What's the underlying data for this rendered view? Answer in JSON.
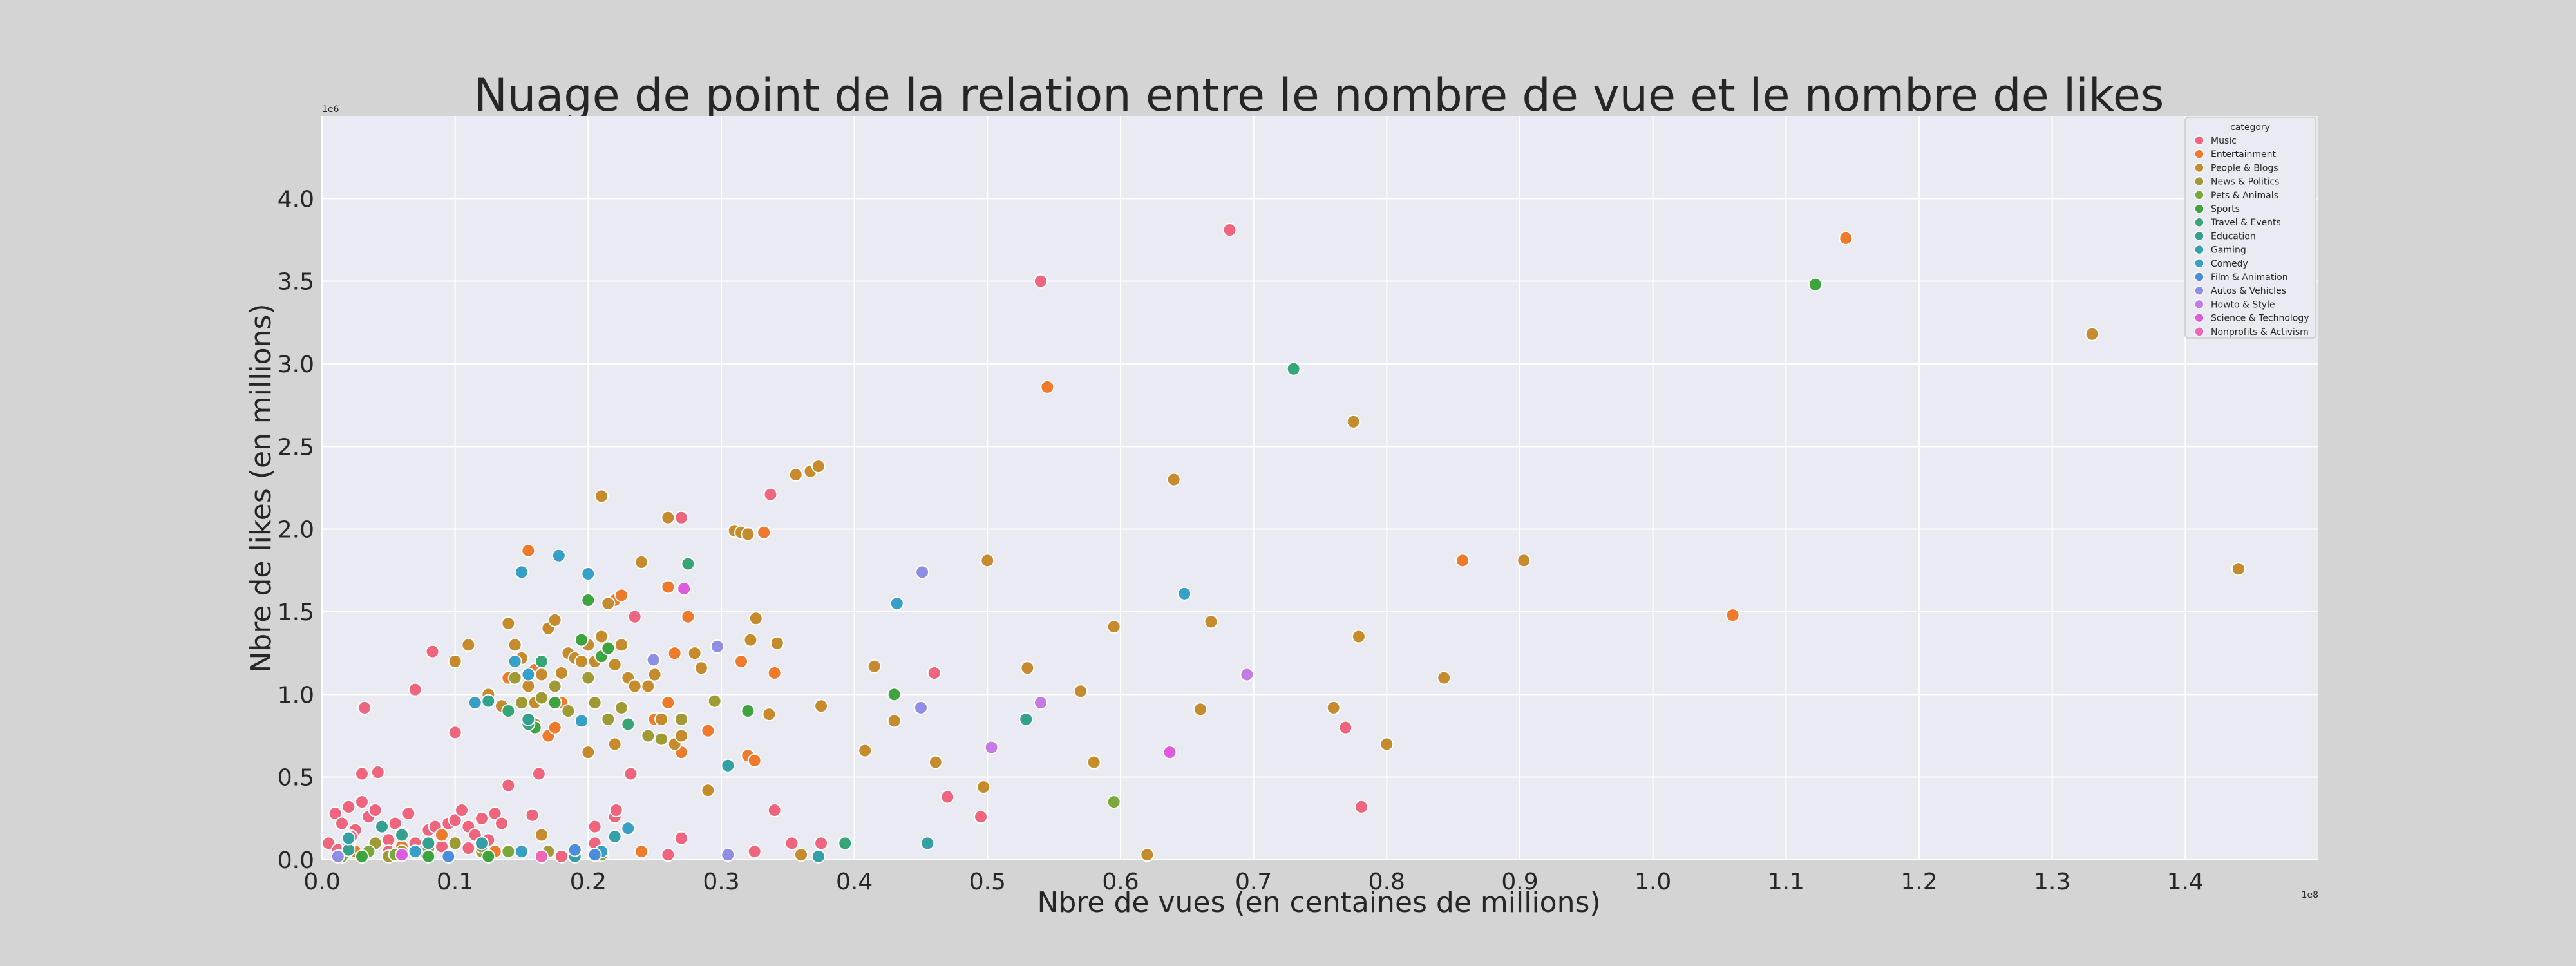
{
  "chart_data": {
    "type": "scatter",
    "title": "Nuage de point de la relation entre le nombre de vue et le nombre de likes",
    "xlabel": "Nbre de vues (en centaines de millions)",
    "ylabel": "Nbre de likes (en millions)",
    "x_offset_text": "1e8",
    "y_offset_text": "1e6",
    "xlim": [
      0.0,
      1.5
    ],
    "ylim": [
      0.0,
      4.5
    ],
    "x_ticks": [
      "0.0",
      "0.1",
      "0.2",
      "0.3",
      "0.4",
      "0.5",
      "0.6",
      "0.7",
      "0.8",
      "0.9",
      "1.0",
      "1.1",
      "1.2",
      "1.3",
      "1.4"
    ],
    "y_ticks": [
      "0.0",
      "0.5",
      "1.0",
      "1.5",
      "2.0",
      "2.5",
      "3.0",
      "3.5",
      "4.0"
    ],
    "grid": true,
    "legend": {
      "title": "category",
      "placement": "top-right"
    },
    "series": [
      {
        "name": "Music",
        "color": "#f0657e",
        "points": [
          [
            0.01,
            0.28
          ],
          [
            0.02,
            0.32
          ],
          [
            0.03,
            0.35
          ],
          [
            0.015,
            0.22
          ],
          [
            0.025,
            0.18
          ],
          [
            0.035,
            0.26
          ],
          [
            0.005,
            0.1
          ],
          [
            0.012,
            0.06
          ],
          [
            0.022,
            0.14
          ],
          [
            0.04,
            0.3
          ],
          [
            0.045,
            0.2
          ],
          [
            0.05,
            0.12
          ],
          [
            0.055,
            0.22
          ],
          [
            0.06,
            0.16
          ],
          [
            0.065,
            0.28
          ],
          [
            0.07,
            0.1
          ],
          [
            0.075,
            0.05
          ],
          [
            0.08,
            0.18
          ],
          [
            0.085,
            0.2
          ],
          [
            0.09,
            0.08
          ],
          [
            0.095,
            0.22
          ],
          [
            0.1,
            0.24
          ],
          [
            0.105,
            0.3
          ],
          [
            0.11,
            0.2
          ],
          [
            0.115,
            0.15
          ],
          [
            0.12,
            0.25
          ],
          [
            0.125,
            0.12
          ],
          [
            0.13,
            0.28
          ],
          [
            0.135,
            0.22
          ],
          [
            0.14,
            0.45
          ],
          [
            0.03,
            0.52
          ],
          [
            0.042,
            0.53
          ],
          [
            0.032,
            0.92
          ],
          [
            0.07,
            1.03
          ],
          [
            0.083,
            1.26
          ],
          [
            0.1,
            0.77
          ],
          [
            0.158,
            0.27
          ],
          [
            0.163,
            0.52
          ],
          [
            0.205,
            0.1
          ],
          [
            0.205,
            0.2
          ],
          [
            0.22,
            0.26
          ],
          [
            0.221,
            0.3
          ],
          [
            0.232,
            0.52
          ],
          [
            0.235,
            1.47
          ],
          [
            0.27,
            2.07
          ],
          [
            0.337,
            2.21
          ],
          [
            0.34,
            0.3
          ],
          [
            0.353,
            0.1
          ],
          [
            0.375,
            0.1
          ],
          [
            0.46,
            1.13
          ],
          [
            0.47,
            0.38
          ],
          [
            0.495,
            0.26
          ],
          [
            0.54,
            3.5
          ],
          [
            0.682,
            3.81
          ],
          [
            0.769,
            0.8
          ],
          [
            0.781,
            0.32
          ],
          [
            0.27,
            0.13
          ],
          [
            0.26,
            0.03
          ],
          [
            0.325,
            0.05
          ],
          [
            0.18,
            0.02
          ],
          [
            0.05,
            0.05
          ],
          [
            0.11,
            0.07
          ]
        ]
      },
      {
        "name": "Entertainment",
        "color": "#ef7a2c",
        "points": [
          [
            0.025,
            0.05
          ],
          [
            0.06,
            0.08
          ],
          [
            0.09,
            0.15
          ],
          [
            0.14,
            1.1
          ],
          [
            0.155,
            1.87
          ],
          [
            0.16,
            1.15
          ],
          [
            0.17,
            0.75
          ],
          [
            0.175,
            0.8
          ],
          [
            0.18,
            0.95
          ],
          [
            0.22,
            1.57
          ],
          [
            0.225,
            1.6
          ],
          [
            0.23,
            1.1
          ],
          [
            0.25,
            0.85
          ],
          [
            0.26,
            0.95
          ],
          [
            0.26,
            1.65
          ],
          [
            0.265,
            1.25
          ],
          [
            0.27,
            0.65
          ],
          [
            0.275,
            1.47
          ],
          [
            0.29,
            0.78
          ],
          [
            0.315,
            1.2
          ],
          [
            0.32,
            0.63
          ],
          [
            0.325,
            0.6
          ],
          [
            0.332,
            1.98
          ],
          [
            0.34,
            1.13
          ],
          [
            0.545,
            2.86
          ],
          [
            0.857,
            1.81
          ],
          [
            1.06,
            1.48
          ],
          [
            1.145,
            3.76
          ],
          [
            0.24,
            0.05
          ],
          [
            0.13,
            0.05
          ]
        ]
      },
      {
        "name": "People & Blogs",
        "color": "#c68b2c",
        "points": [
          [
            0.14,
            1.43
          ],
          [
            0.145,
            1.3
          ],
          [
            0.15,
            1.22
          ],
          [
            0.155,
            1.05
          ],
          [
            0.16,
            0.95
          ],
          [
            0.165,
            1.12
          ],
          [
            0.17,
            1.4
          ],
          [
            0.175,
            1.45
          ],
          [
            0.18,
            1.13
          ],
          [
            0.185,
            1.25
          ],
          [
            0.19,
            1.22
          ],
          [
            0.195,
            1.2
          ],
          [
            0.2,
            1.3
          ],
          [
            0.205,
            1.2
          ],
          [
            0.21,
            1.35
          ],
          [
            0.215,
            1.55
          ],
          [
            0.22,
            1.18
          ],
          [
            0.225,
            1.3
          ],
          [
            0.23,
            1.1
          ],
          [
            0.235,
            1.05
          ],
          [
            0.24,
            1.8
          ],
          [
            0.245,
            1.05
          ],
          [
            0.25,
            1.12
          ],
          [
            0.255,
            0.85
          ],
          [
            0.26,
            2.07
          ],
          [
            0.265,
            0.7
          ],
          [
            0.27,
            0.75
          ],
          [
            0.28,
            1.25
          ],
          [
            0.285,
            1.16
          ],
          [
            0.29,
            0.42
          ],
          [
            0.31,
            1.99
          ],
          [
            0.315,
            1.98
          ],
          [
            0.32,
            1.97
          ],
          [
            0.322,
            1.33
          ],
          [
            0.326,
            1.46
          ],
          [
            0.336,
            0.88
          ],
          [
            0.342,
            1.31
          ],
          [
            0.356,
            2.33
          ],
          [
            0.367,
            2.35
          ],
          [
            0.373,
            2.38
          ],
          [
            0.375,
            0.93
          ],
          [
            0.21,
            2.2
          ],
          [
            0.408,
            0.66
          ],
          [
            0.415,
            1.17
          ],
          [
            0.43,
            0.84
          ],
          [
            0.461,
            0.59
          ],
          [
            0.497,
            0.44
          ],
          [
            0.5,
            1.81
          ],
          [
            0.53,
            1.16
          ],
          [
            0.57,
            1.02
          ],
          [
            0.58,
            0.59
          ],
          [
            0.595,
            1.41
          ],
          [
            0.62,
            0.03
          ],
          [
            0.64,
            2.3
          ],
          [
            0.66,
            0.91
          ],
          [
            0.668,
            1.44
          ],
          [
            0.76,
            0.92
          ],
          [
            0.775,
            2.65
          ],
          [
            0.779,
            1.35
          ],
          [
            0.8,
            0.7
          ],
          [
            0.843,
            1.1
          ],
          [
            0.903,
            1.81
          ],
          [
            1.33,
            3.18
          ],
          [
            1.44,
            1.76
          ],
          [
            0.1,
            1.2
          ],
          [
            0.11,
            1.3
          ],
          [
            0.125,
            1.0
          ],
          [
            0.135,
            0.93
          ],
          [
            0.2,
            0.65
          ],
          [
            0.22,
            0.7
          ],
          [
            0.165,
            0.15
          ],
          [
            0.36,
            0.03
          ]
        ]
      },
      {
        "name": "News & Politics",
        "color": "#9f9a34",
        "points": [
          [
            0.02,
            0.08
          ],
          [
            0.04,
            0.1
          ],
          [
            0.06,
            0.05
          ],
          [
            0.08,
            0.07
          ],
          [
            0.1,
            0.1
          ],
          [
            0.12,
            0.05
          ],
          [
            0.145,
            1.1
          ],
          [
            0.15,
            0.95
          ],
          [
            0.16,
            0.82
          ],
          [
            0.165,
            0.98
          ],
          [
            0.175,
            1.05
          ],
          [
            0.185,
            0.9
          ],
          [
            0.2,
            1.1
          ],
          [
            0.205,
            0.95
          ],
          [
            0.215,
            0.85
          ],
          [
            0.225,
            0.92
          ],
          [
            0.23,
            0.82
          ],
          [
            0.245,
            0.75
          ],
          [
            0.255,
            0.73
          ],
          [
            0.27,
            0.85
          ],
          [
            0.295,
            0.96
          ],
          [
            0.17,
            0.05
          ],
          [
            0.05,
            0.02
          ]
        ]
      },
      {
        "name": "Pets & Animals",
        "color": "#7aa839",
        "points": [
          [
            0.015,
            0.02
          ],
          [
            0.035,
            0.05
          ],
          [
            0.055,
            0.03
          ],
          [
            0.12,
            0.08
          ],
          [
            0.14,
            0.05
          ],
          [
            0.595,
            0.35
          ],
          [
            0.21,
            0.03
          ]
        ]
      },
      {
        "name": "Sports",
        "color": "#3ea43e",
        "points": [
          [
            0.03,
            0.02
          ],
          [
            0.08,
            0.02
          ],
          [
            0.125,
            0.02
          ],
          [
            0.175,
            0.95
          ],
          [
            0.195,
            1.33
          ],
          [
            0.2,
            1.57
          ],
          [
            0.21,
            1.23
          ],
          [
            0.215,
            1.28
          ],
          [
            0.32,
            0.9
          ],
          [
            0.43,
            1.0
          ],
          [
            1.122,
            3.48
          ],
          [
            0.16,
            0.8
          ]
        ]
      },
      {
        "name": "Travel & Events",
        "color": "#36a676",
        "points": [
          [
            0.14,
            0.9
          ],
          [
            0.155,
            0.82
          ],
          [
            0.165,
            1.2
          ],
          [
            0.23,
            0.82
          ],
          [
            0.275,
            1.79
          ],
          [
            0.393,
            0.1
          ],
          [
            0.73,
            2.97
          ]
        ]
      },
      {
        "name": "Education",
        "color": "#34a08f",
        "points": [
          [
            0.045,
            0.2
          ],
          [
            0.06,
            0.15
          ],
          [
            0.08,
            0.1
          ],
          [
            0.125,
            0.96
          ],
          [
            0.155,
            0.85
          ],
          [
            0.529,
            0.85
          ],
          [
            0.02,
            0.06
          ]
        ]
      },
      {
        "name": "Gaming",
        "color": "#33a0a8",
        "points": [
          [
            0.02,
            0.13
          ],
          [
            0.12,
            0.1
          ],
          [
            0.19,
            0.02
          ],
          [
            0.22,
            0.14
          ],
          [
            0.305,
            0.57
          ],
          [
            0.373,
            0.02
          ],
          [
            0.455,
            0.1
          ]
        ]
      },
      {
        "name": "Comedy",
        "color": "#36a0c8",
        "points": [
          [
            0.115,
            0.95
          ],
          [
            0.145,
            1.2
          ],
          [
            0.15,
            1.74
          ],
          [
            0.155,
            1.12
          ],
          [
            0.178,
            1.84
          ],
          [
            0.195,
            0.84
          ],
          [
            0.2,
            1.73
          ],
          [
            0.21,
            0.05
          ],
          [
            0.23,
            0.19
          ],
          [
            0.432,
            1.55
          ],
          [
            0.648,
            1.61
          ],
          [
            0.15,
            0.05
          ],
          [
            0.07,
            0.05
          ]
        ]
      },
      {
        "name": "Film & Animation",
        "color": "#4a8ddc",
        "points": [
          [
            0.19,
            0.06
          ],
          [
            0.205,
            0.03
          ],
          [
            0.095,
            0.02
          ]
        ]
      },
      {
        "name": "Autos & Vehicles",
        "color": "#8f8ee6",
        "points": [
          [
            0.249,
            1.21
          ],
          [
            0.297,
            1.29
          ],
          [
            0.45,
            0.92
          ],
          [
            0.451,
            1.74
          ],
          [
            0.305,
            0.03
          ],
          [
            0.012,
            0.02
          ]
        ]
      },
      {
        "name": "Howto & Style",
        "color": "#c57ae6",
        "points": [
          [
            0.503,
            0.68
          ],
          [
            0.54,
            0.95
          ],
          [
            0.695,
            1.12
          ]
        ]
      },
      {
        "name": "Science & Technology",
        "color": "#e05ae0",
        "points": [
          [
            0.272,
            1.64
          ],
          [
            0.637,
            0.65
          ],
          [
            0.06,
            0.03
          ]
        ]
      },
      {
        "name": "Nonprofits & Activism",
        "color": "#f065b5",
        "points": [
          [
            0.165,
            0.02
          ]
        ]
      }
    ]
  }
}
